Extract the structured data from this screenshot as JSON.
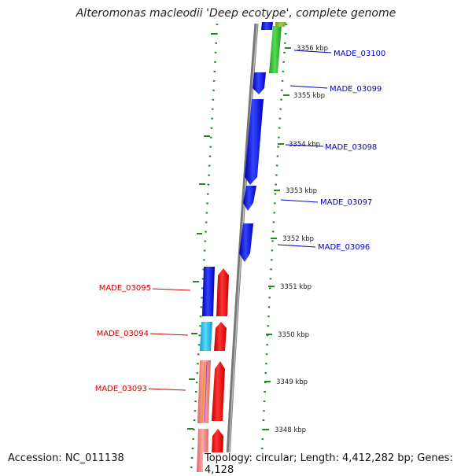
{
  "title": "Alteromonas macleodii 'Deep ecotype', complete genome",
  "footer": {
    "accession": "Accession: NC_011138",
    "topology": "Topology: circular; Length: 4,412,282 bp; Genes: 4,128"
  },
  "ticks": [
    {
      "label": "3356 kbp"
    },
    {
      "label": "3355 kbp"
    },
    {
      "label": "3354 kbp"
    },
    {
      "label": "3353 kbp"
    },
    {
      "label": "3352 kbp"
    },
    {
      "label": "3351 kbp"
    },
    {
      "label": "3350 kbp"
    },
    {
      "label": "3349 kbp"
    },
    {
      "label": "3348 kbp"
    }
  ],
  "genes_right": [
    {
      "label": "MADE_03100",
      "color": "#0000cc"
    },
    {
      "label": "MADE_03099",
      "color": "#0000cc"
    },
    {
      "label": "MADE_03098",
      "color": "#0000cc"
    },
    {
      "label": "MADE_03097",
      "color": "#0000cc"
    },
    {
      "label": "MADE_03096",
      "color": "#0000cc"
    }
  ],
  "genes_left": [
    {
      "label": "MADE_03095",
      "color": "#cc0000"
    },
    {
      "label": "MADE_03094",
      "color": "#cc0000"
    },
    {
      "label": "MADE_03093",
      "color": "#cc0000"
    }
  ],
  "colors": {
    "cds": "#0000ee",
    "rna": "#ee0000",
    "cyan": "#22bbee",
    "green": "#33bb33",
    "pink": "#ee8888",
    "orange": "#ee9922",
    "backbone": "#888888",
    "dots": "#228822"
  }
}
